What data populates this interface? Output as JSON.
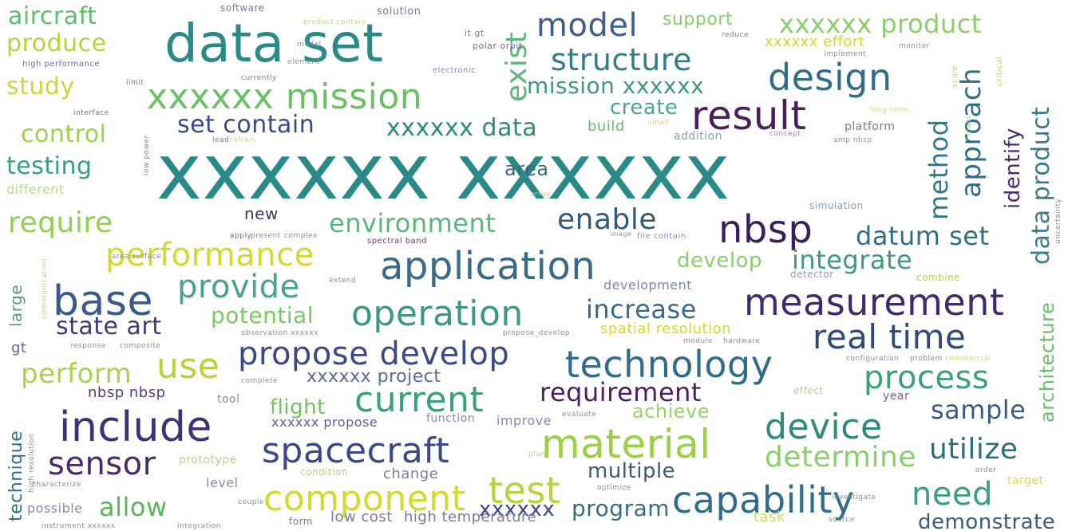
{
  "word_cloud": {
    "words": [
      {
        "text": "xxxxxx xxxxxx",
        "color": "#2a8a87"
      },
      {
        "text": "data set",
        "color": "#2a8a87"
      },
      {
        "text": "aircraft",
        "color": "#5bbf6a"
      },
      {
        "text": "produce",
        "color": "#b6d43a"
      },
      {
        "text": "study",
        "color": "#c9d83a"
      },
      {
        "text": "control",
        "color": "#9bd34a"
      },
      {
        "text": "testing",
        "color": "#35a07d"
      },
      {
        "text": "different",
        "color": "#b9dc8a"
      },
      {
        "text": "require",
        "color": "#8dd14c"
      },
      {
        "text": "performance",
        "color": "#d3da2d"
      },
      {
        "text": "base",
        "color": "#3b5a8c"
      },
      {
        "text": "provide",
        "color": "#47a38a"
      },
      {
        "text": "state art",
        "color": "#3c3c78"
      },
      {
        "text": "perform",
        "color": "#a9d44a"
      },
      {
        "text": "use",
        "color": "#b6d43a"
      },
      {
        "text": "include",
        "color": "#3d3278"
      },
      {
        "text": "sensor",
        "color": "#4a2a68"
      },
      {
        "text": "allow",
        "color": "#58b85a"
      },
      {
        "text": "technique",
        "color": "#2f6d8a"
      },
      {
        "text": "large",
        "color": "#5a9d6a"
      },
      {
        "text": "model",
        "color": "#3f5e8c"
      },
      {
        "text": "support",
        "color": "#8ad06a"
      },
      {
        "text": "xxxxxx product",
        "color": "#8ad06a"
      },
      {
        "text": "structure",
        "color": "#2f7e8c"
      },
      {
        "text": "design",
        "color": "#2f6d8a"
      },
      {
        "text": "xxxxxx mission",
        "color": "#6cc064"
      },
      {
        "text": "mission xxxxxx",
        "color": "#3f9a7a"
      },
      {
        "text": "result",
        "color": "#4a1f5c"
      },
      {
        "text": "create",
        "color": "#4aa88a"
      },
      {
        "text": "set contain",
        "color": "#3a4a88"
      },
      {
        "text": "xxxxxx data",
        "color": "#2f8a7a"
      },
      {
        "text": "environment",
        "color": "#58b878"
      },
      {
        "text": "enable",
        "color": "#2f5a7a"
      },
      {
        "text": "nbsp",
        "color": "#3a1f5a"
      },
      {
        "text": "datum set",
        "color": "#2f6d8a"
      },
      {
        "text": "application",
        "color": "#3a6a8a"
      },
      {
        "text": "develop",
        "color": "#8ad06a"
      },
      {
        "text": "integrate",
        "color": "#3f9a7a"
      },
      {
        "text": "measurement",
        "color": "#3f2a6c"
      },
      {
        "text": "operation",
        "color": "#3a9a7a"
      },
      {
        "text": "increase",
        "color": "#3a6a8a"
      },
      {
        "text": "potential",
        "color": "#7ac864"
      },
      {
        "text": "real time",
        "color": "#2f4a7a"
      },
      {
        "text": "propose develop",
        "color": "#3a4a88"
      },
      {
        "text": "technology",
        "color": "#2f6d8a"
      },
      {
        "text": "process",
        "color": "#3aa07a"
      },
      {
        "text": "xxxxxx project",
        "color": "#5a6a9a"
      },
      {
        "text": "current",
        "color": "#3aa07a"
      },
      {
        "text": "requirement",
        "color": "#4a1f5c"
      },
      {
        "text": "nbsp nbsp",
        "color": "#5a3a78"
      },
      {
        "text": "flight",
        "color": "#78c064"
      },
      {
        "text": "achieve",
        "color": "#9ad06a"
      },
      {
        "text": "sample",
        "color": "#3a5a88"
      },
      {
        "text": "device",
        "color": "#2f8a7a"
      },
      {
        "text": "material",
        "color": "#9ad044"
      },
      {
        "text": "spacecraft",
        "color": "#3a4a88"
      },
      {
        "text": "determine",
        "color": "#8ad06a"
      },
      {
        "text": "utilize",
        "color": "#2f6d7a"
      },
      {
        "text": "component",
        "color": "#d3da2d"
      },
      {
        "text": "test",
        "color": "#b6d43a"
      },
      {
        "text": "multiple",
        "color": "#3a5a78"
      },
      {
        "text": "capability",
        "color": "#2f6d8a"
      },
      {
        "text": "need",
        "color": "#3aa07a"
      },
      {
        "text": "program",
        "color": "#3a6a8a"
      },
      {
        "text": "xxxxxx",
        "color": "#3a4a88"
      },
      {
        "text": "demonstrate",
        "color": "#3a5a78"
      },
      {
        "text": "exist",
        "color": "#5ab878"
      },
      {
        "text": "approach",
        "color": "#2f6d8a"
      },
      {
        "text": "method",
        "color": "#2f7a8a"
      },
      {
        "text": "identify",
        "color": "#4a2a68"
      },
      {
        "text": "data product",
        "color": "#3a7a8a"
      },
      {
        "text": "architecture",
        "color": "#6ac06a"
      },
      {
        "text": "area",
        "color": "#3a6a7a"
      },
      {
        "text": "new",
        "color": "#3a3a6a"
      },
      {
        "text": "build",
        "color": "#6ac06a"
      },
      {
        "text": "xxxxxx effort",
        "color": "#d3da2d"
      },
      {
        "text": "software",
        "color": "#7a7a9a"
      },
      {
        "text": "solution",
        "color": "#7a7a9a"
      },
      {
        "text": "high performance",
        "color": "#6a6a9a"
      },
      {
        "text": "polar orbit",
        "color": "#6a6a9a"
      },
      {
        "text": "spatial resolution",
        "color": "#d3da2d"
      },
      {
        "text": "development",
        "color": "#7a8aaa"
      },
      {
        "text": "combine",
        "color": "#b6d43a"
      },
      {
        "text": "level",
        "color": "#8a8aaa"
      },
      {
        "text": "change",
        "color": "#7a7a9a"
      },
      {
        "text": "possible",
        "color": "#8a8aaa"
      },
      {
        "text": "prototype",
        "color": "#b6d48a"
      },
      {
        "text": "form",
        "color": "#7a7a9a"
      },
      {
        "text": "low cost",
        "color": "#7a7a9a"
      },
      {
        "text": "high temperature",
        "color": "#7a7a9a"
      },
      {
        "text": "task",
        "color": "#d3da5a"
      },
      {
        "text": "target",
        "color": "#d3da5a"
      },
      {
        "text": "year",
        "color": "#7a5a9a"
      },
      {
        "text": "function",
        "color": "#8a8aaa"
      },
      {
        "text": "improve",
        "color": "#8a8aaa"
      },
      {
        "text": "xxxxxx propose",
        "color": "#6a5a9a"
      },
      {
        "text": "tool",
        "color": "#8a8aaa"
      },
      {
        "text": "condition",
        "color": "#b6d48a"
      },
      {
        "text": "simulation",
        "color": "#8aa0b0"
      },
      {
        "text": "addition",
        "color": "#8aa0b0"
      },
      {
        "text": "platform",
        "color": "#7a7a9a"
      },
      {
        "text": "gt",
        "color": "#5a6a8a"
      },
      {
        "text": "it gt",
        "color": "#7a7a9a"
      },
      {
        "text": "spectral band",
        "color": "#6a3a7a"
      },
      {
        "text": "file contain",
        "color": "#8a8aaa"
      },
      {
        "text": "image",
        "color": "#8a8aaa"
      },
      {
        "text": "detector",
        "color": "#8aa0b0"
      },
      {
        "text": "electronic",
        "color": "#8a8aaa"
      },
      {
        "text": "interface",
        "color": "#7a6a9a"
      },
      {
        "text": "product contain",
        "color": "#d3da5a"
      },
      {
        "text": "reduce",
        "color": "#7a7a9a"
      },
      {
        "text": "implement",
        "color": "#8a8aaa"
      },
      {
        "text": "monitor",
        "color": "#8a8aaa"
      },
      {
        "text": "currently",
        "color": "#7a7a9a"
      },
      {
        "text": "element",
        "color": "#8a8aaa"
      },
      {
        "text": "model",
        "color": "#8a8aaa"
      },
      {
        "text": "apply",
        "color": "#7a6a9a"
      },
      {
        "text": "present",
        "color": "#8a8aaa"
      },
      {
        "text": "complex",
        "color": "#8a8aaa"
      },
      {
        "text": "extend",
        "color": "#8a8aaa"
      },
      {
        "text": "observation xxxxxx",
        "color": "#8a8aaa"
      },
      {
        "text": "module",
        "color": "#8a8aaa"
      },
      {
        "text": "hardware",
        "color": "#8a8aaa"
      },
      {
        "text": "configuration",
        "color": "#8a8aaa"
      },
      {
        "text": "problem",
        "color": "#8a8aaa"
      },
      {
        "text": "commercial",
        "color": "#d3da5a"
      },
      {
        "text": "effect",
        "color": "#b6d48a"
      },
      {
        "text": "evaluate",
        "color": "#8a8aaa"
      },
      {
        "text": "complete",
        "color": "#8a8aaa"
      },
      {
        "text": "response",
        "color": "#8a8aaa"
      },
      {
        "text": "composite",
        "color": "#8a8aaa"
      },
      {
        "text": "high resolution",
        "color": "#8a8aaa"
      },
      {
        "text": "characterize",
        "color": "#8a8aaa"
      },
      {
        "text": "couple",
        "color": "#8a8aaa"
      },
      {
        "text": "instrument xxxxxx",
        "color": "#8a8aaa"
      },
      {
        "text": "integration",
        "color": "#8a8aaa"
      },
      {
        "text": "optimize",
        "color": "#8a8aaa"
      },
      {
        "text": "order",
        "color": "#8a8aaa"
      },
      {
        "text": "investigate",
        "color": "#8a8aaa"
      },
      {
        "text": "plan",
        "color": "#b6d48a"
      },
      {
        "text": "array",
        "color": "#b6d48a"
      },
      {
        "text": "small",
        "color": "#d3da5a"
      },
      {
        "text": "long term",
        "color": "#d3da5a"
      },
      {
        "text": "lead",
        "color": "#7a7a9a"
      },
      {
        "text": "refrain",
        "color": "#d3da5a"
      },
      {
        "text": "concept",
        "color": "#8a8aaa"
      },
      {
        "text": "amp nbsp",
        "color": "#8a8aaa"
      },
      {
        "text": "communication",
        "color": "#b6d48a"
      },
      {
        "text": "area surface",
        "color": "#8a8aaa"
      },
      {
        "text": "propose_develop",
        "color": "#8a8aaa"
      },
      {
        "text": "low power",
        "color": "#8a8aaa"
      },
      {
        "text": "scale",
        "color": "#b6d48a"
      },
      {
        "text": "critical",
        "color": "#b6d48a"
      },
      {
        "text": "mass",
        "color": "#b6d48a"
      },
      {
        "text": "uncertainty",
        "color": "#8a8aaa"
      },
      {
        "text": "source",
        "color": "#8a8aaa"
      },
      {
        "text": "limit",
        "color": "#7a7a9a"
      }
    ]
  }
}
